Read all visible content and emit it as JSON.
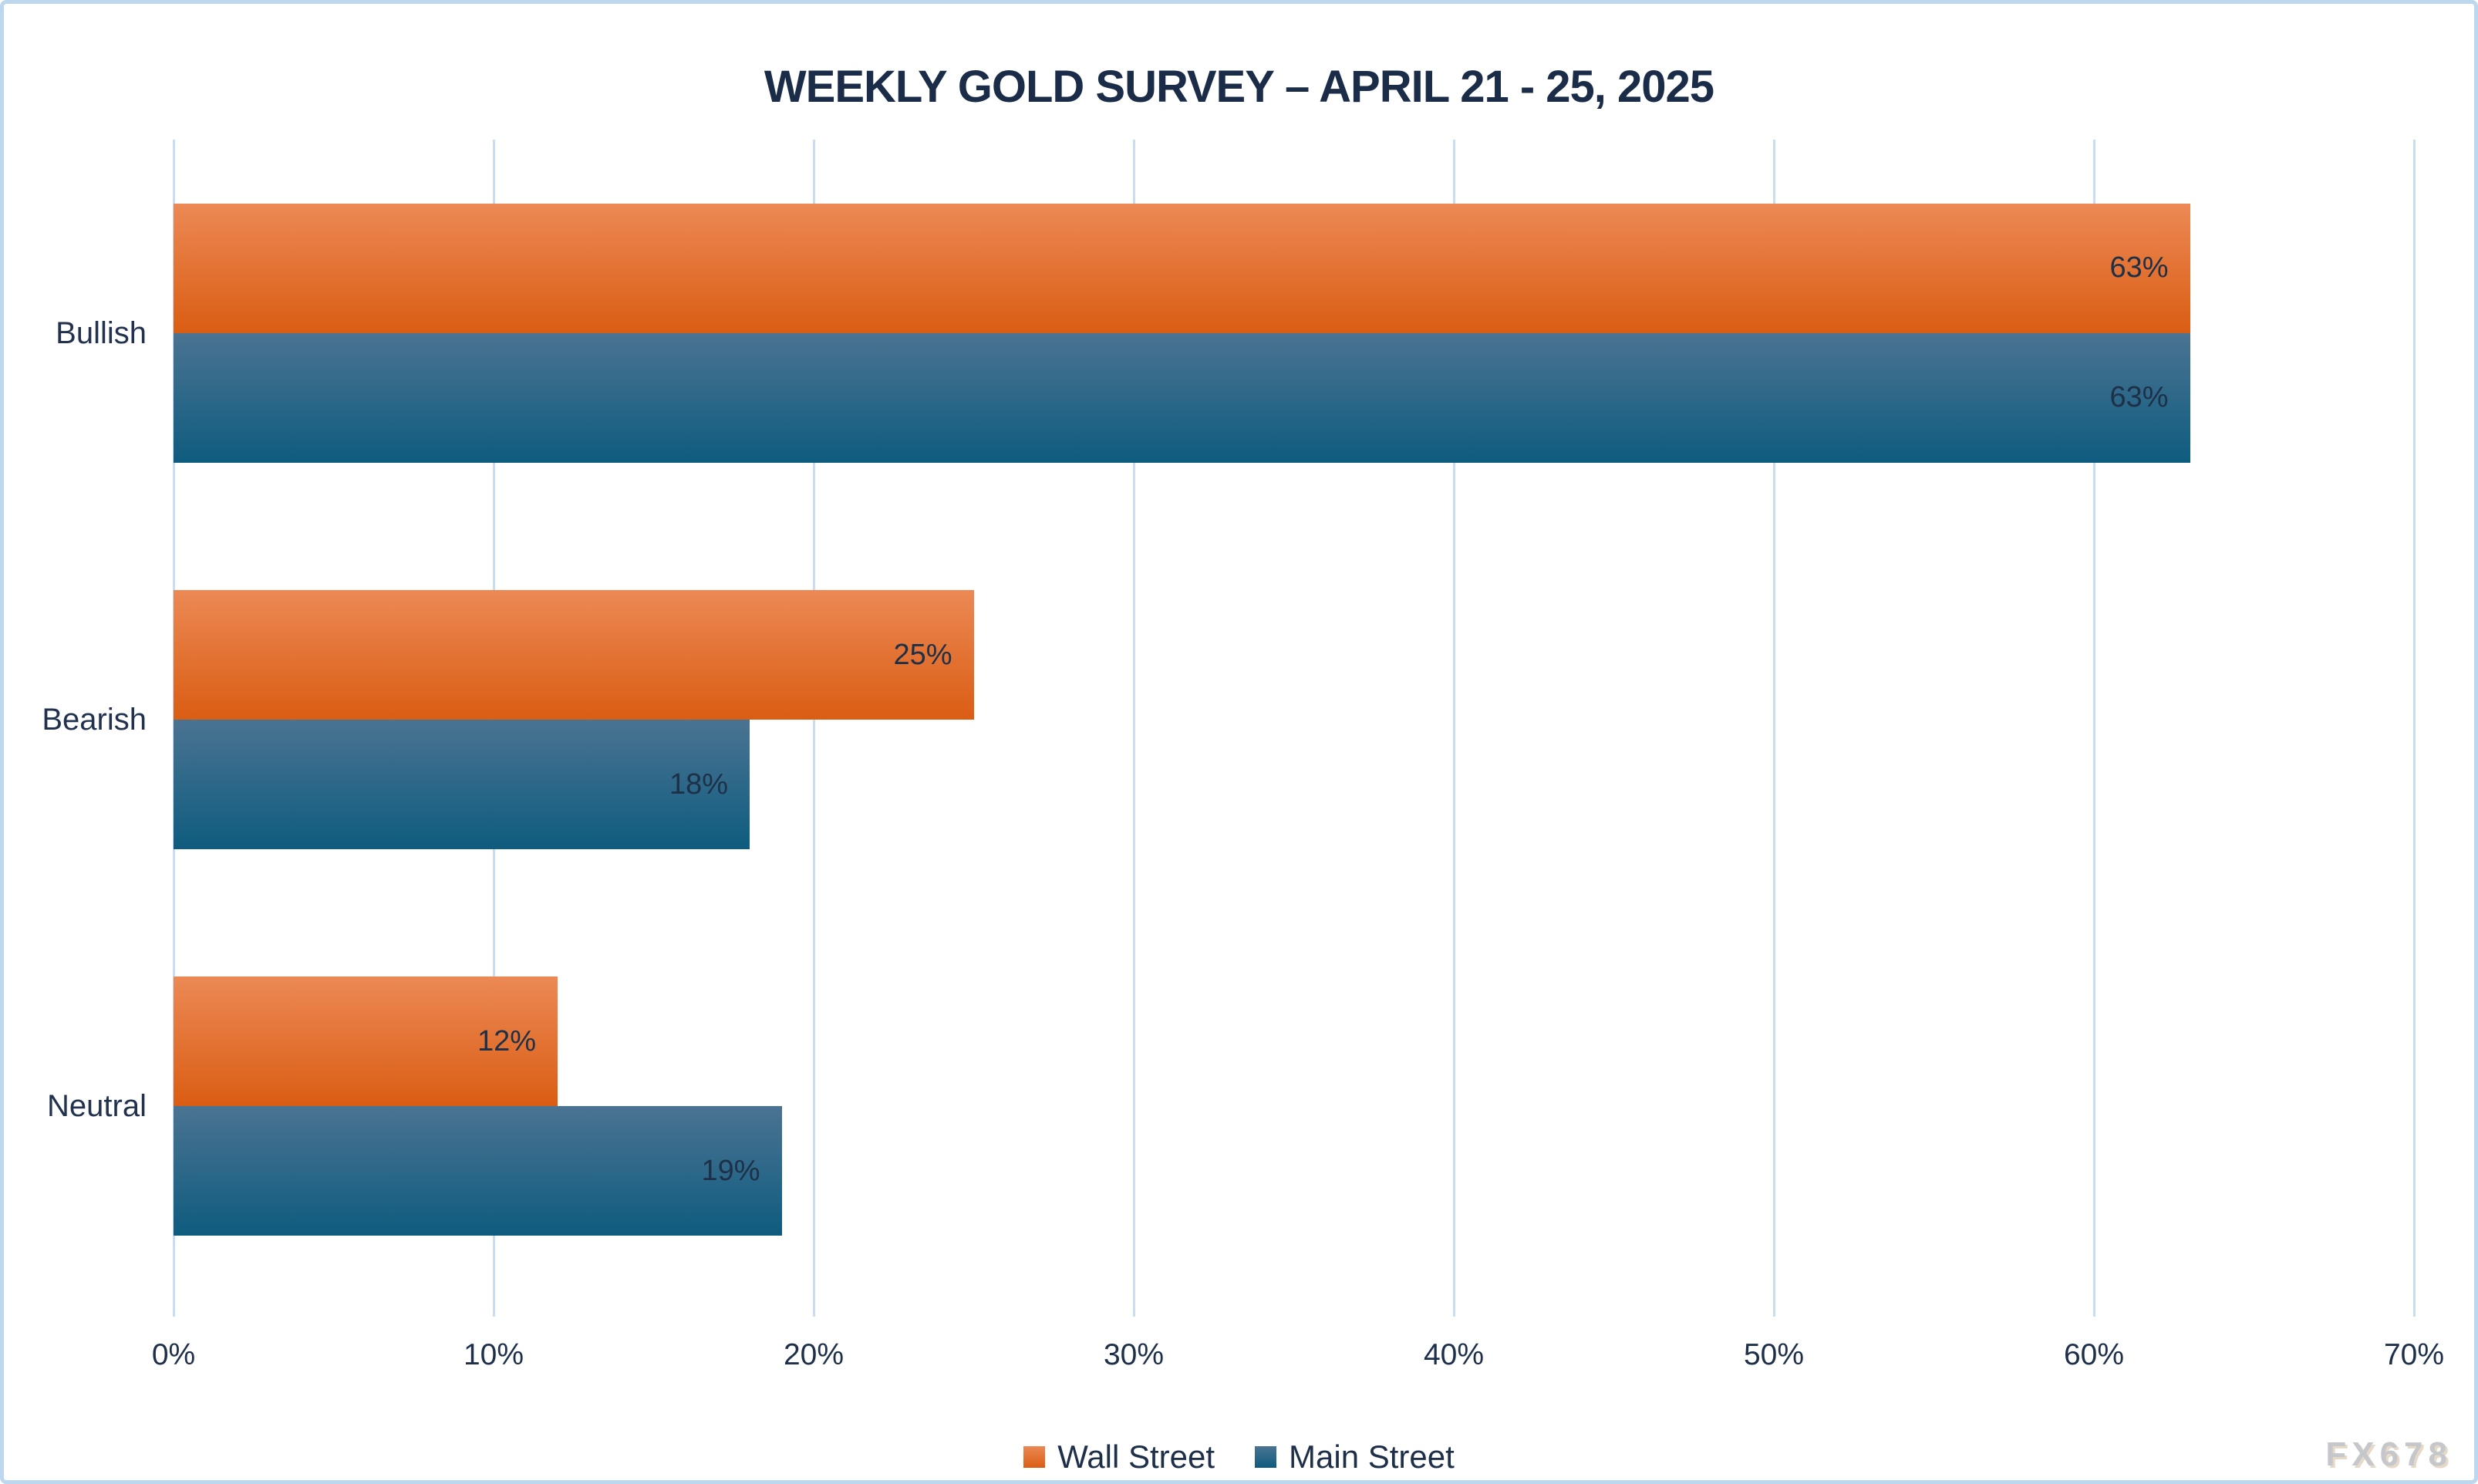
{
  "title": "WEEKLY GOLD SURVEY – APRIL 21 - 25, 2025",
  "watermark": "FX678",
  "colors": {
    "frame_border": "#BDD7EE",
    "gridline": "#C9DDF1",
    "text": "#1E2F4A",
    "wall_street_top": "#EC8955",
    "wall_street_bottom": "#DA5D13",
    "main_street_top": "#4B7392",
    "main_street_bottom": "#0E5C7F"
  },
  "chart_data": {
    "type": "bar",
    "orientation": "horizontal",
    "title": "WEEKLY GOLD SURVEY – APRIL 21 - 25, 2025",
    "categories": [
      "Bullish",
      "Bearish",
      "Neutral"
    ],
    "series": [
      {
        "name": "Wall Street",
        "values": [
          63,
          25,
          12
        ],
        "color_top": "#EC8955",
        "color_bottom": "#DA5D13"
      },
      {
        "name": "Main Street",
        "values": [
          63,
          18,
          19
        ],
        "color_top": "#4B7392",
        "color_bottom": "#0E5C7F"
      }
    ],
    "value_suffix": "%",
    "data_labels": {
      "Wall Street": [
        "63%",
        "25%",
        "12%"
      ],
      "Main Street": [
        "63%",
        "18%",
        "19%"
      ]
    },
    "x_tick_labels": [
      "0%",
      "10%",
      "20%",
      "30%",
      "40%",
      "50%",
      "60%",
      "70%"
    ],
    "xlim": [
      0,
      70
    ],
    "xlabel": "",
    "ylabel": "",
    "grid": true,
    "legend_position": "bottom"
  }
}
